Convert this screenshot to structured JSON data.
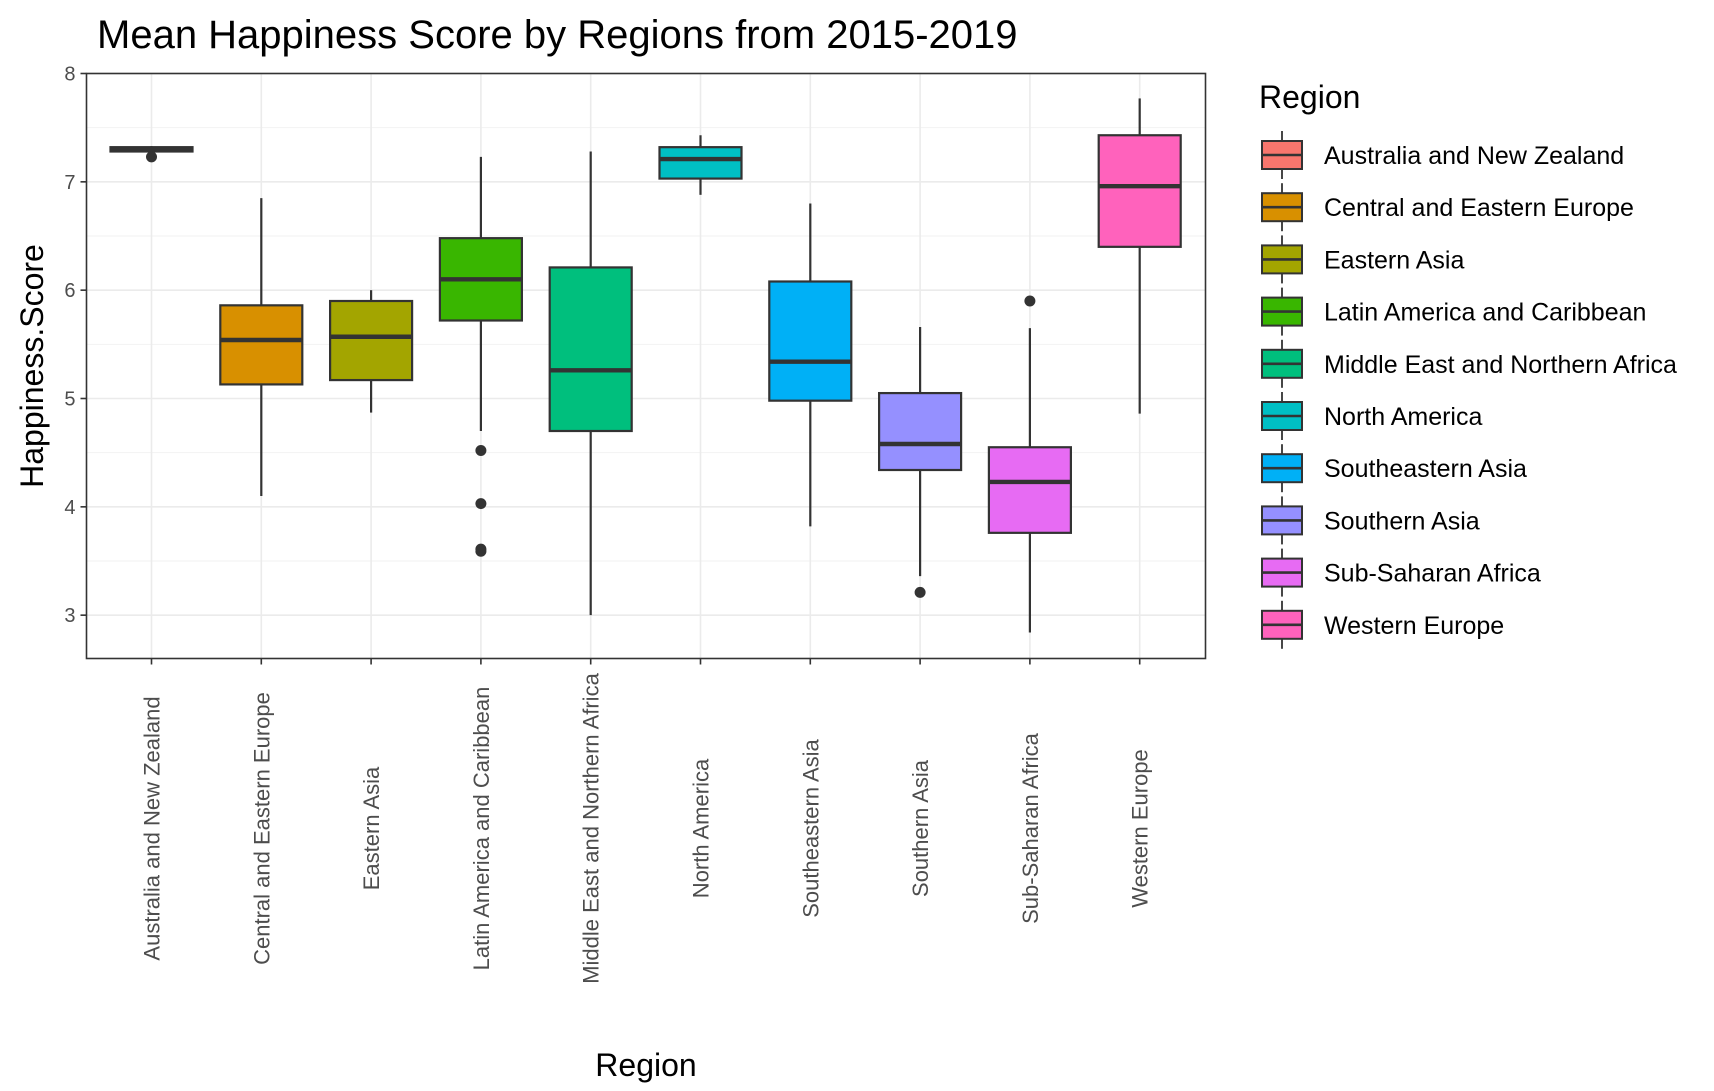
{
  "chart_data": {
    "type": "box",
    "title": "Mean Happiness Score by Regions from 2015-2019",
    "xlabel": "Region",
    "ylabel": "Happiness.Score",
    "ylim": [
      2.6,
      8.0
    ],
    "yticks": [
      3,
      4,
      5,
      6,
      7,
      8
    ],
    "grid": true,
    "legend": {
      "title": "Region",
      "position": "right"
    },
    "categories": [
      "Australia and New Zealand",
      "Central and Eastern Europe",
      "Eastern Asia",
      "Latin America and Caribbean",
      "Middle East and Northern Africa",
      "North America",
      "Southeastern Asia",
      "Southern Asia",
      "Sub-Saharan Africa",
      "Western Europe"
    ],
    "colors": [
      "#F8766D",
      "#D89000",
      "#A3A500",
      "#39B600",
      "#00BF7D",
      "#00BFC4",
      "#00B0F6",
      "#9590FF",
      "#E76BF3",
      "#FF62BC"
    ],
    "boxes": [
      {
        "whisker_low": 7.28,
        "q1": 7.28,
        "median": 7.3,
        "q3": 7.32,
        "whisker_high": 7.33,
        "outliers": [
          7.23
        ]
      },
      {
        "whisker_low": 4.1,
        "q1": 5.13,
        "median": 5.54,
        "q3": 5.86,
        "whisker_high": 6.85,
        "outliers": []
      },
      {
        "whisker_low": 4.87,
        "q1": 5.17,
        "median": 5.57,
        "q3": 5.9,
        "whisker_high": 6.0,
        "outliers": []
      },
      {
        "whisker_low": 4.7,
        "q1": 5.72,
        "median": 6.1,
        "q3": 6.48,
        "whisker_high": 7.23,
        "outliers": [
          4.52,
          4.03,
          3.61,
          3.59
        ]
      },
      {
        "whisker_low": 3.0,
        "q1": 4.7,
        "median": 5.26,
        "q3": 6.21,
        "whisker_high": 7.28,
        "outliers": []
      },
      {
        "whisker_low": 6.88,
        "q1": 7.03,
        "median": 7.21,
        "q3": 7.32,
        "whisker_high": 7.43,
        "outliers": []
      },
      {
        "whisker_low": 3.82,
        "q1": 4.98,
        "median": 5.34,
        "q3": 6.08,
        "whisker_high": 6.8,
        "outliers": []
      },
      {
        "whisker_low": 3.36,
        "q1": 4.34,
        "median": 4.58,
        "q3": 5.05,
        "whisker_high": 5.66,
        "outliers": [
          3.21
        ]
      },
      {
        "whisker_low": 2.84,
        "q1": 3.76,
        "median": 4.23,
        "q3": 4.55,
        "whisker_high": 5.65,
        "outliers": [
          5.9
        ]
      },
      {
        "whisker_low": 4.86,
        "q1": 6.4,
        "median": 6.96,
        "q3": 7.43,
        "whisker_high": 7.77,
        "outliers": []
      }
    ]
  }
}
